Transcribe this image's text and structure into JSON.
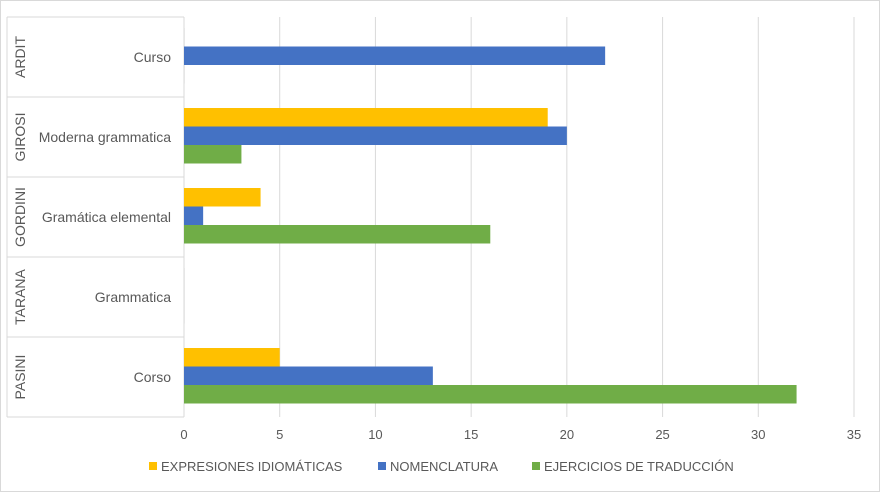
{
  "chart_data": {
    "type": "bar",
    "orientation": "horizontal",
    "groups": [
      {
        "author": "ARDIT",
        "title": "Curso"
      },
      {
        "author": "GIROSI",
        "title": "Moderna grammatica"
      },
      {
        "author": "GORDINI",
        "title": "Gramática elemental"
      },
      {
        "author": "TARANA",
        "title": "Grammatica"
      },
      {
        "author": "PASINI",
        "title": "Corso"
      }
    ],
    "series": [
      {
        "name": "EXPRESIONES IDIOMÁTICAS",
        "color": "#FFC000",
        "values": [
          0,
          19,
          4,
          0,
          5
        ]
      },
      {
        "name": "NOMENCLATURA",
        "color": "#4472C4",
        "values": [
          22,
          20,
          1,
          0,
          13
        ]
      },
      {
        "name": "EJERCICIOS DE TRADUCCIÓN",
        "color": "#70AD47",
        "values": [
          0,
          3,
          16,
          0,
          32
        ]
      }
    ],
    "x_ticks": [
      0,
      5,
      10,
      15,
      20,
      25,
      30,
      35
    ],
    "xlim": [
      0,
      35
    ],
    "grid": "vertical",
    "legend_position": "bottom"
  }
}
